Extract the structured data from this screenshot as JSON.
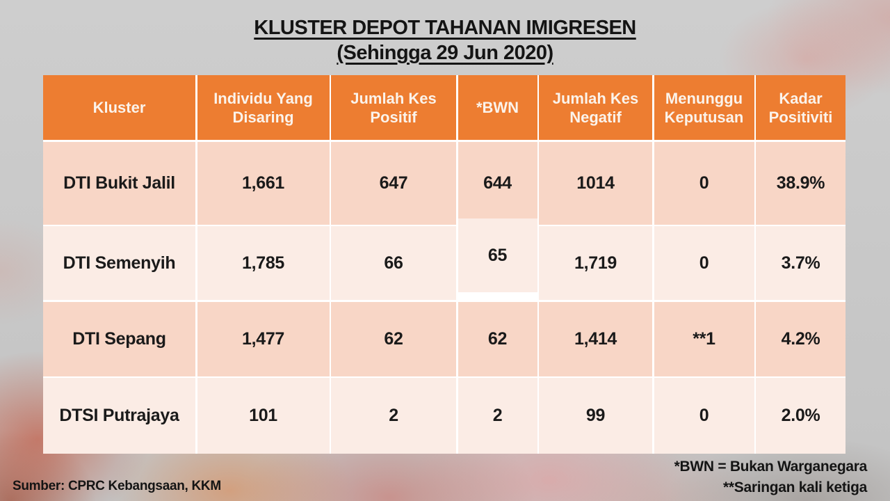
{
  "title": {
    "line1": "KLUSTER DEPOT TAHANAN IMIGRESEN",
    "line2": "(Sehingga 29 Jun 2020)"
  },
  "chart_data": {
    "type": "table",
    "title": "KLUSTER DEPOT TAHANAN IMIGRESEN (Sehingga 29 Jun 2020)",
    "columns": [
      "Kluster",
      "Individu Yang Disaring",
      "Jumlah Kes Positif",
      "*BWN",
      "Jumlah Kes Negatif",
      "Menunggu Keputusan",
      "Kadar Positiviti"
    ],
    "column_keys": [
      "kluster",
      "disaring",
      "positif",
      "bwn",
      "negatif",
      "menunggu",
      "kadar"
    ],
    "rows": [
      [
        "DTI Bukit Jalil",
        "1,661",
        "647",
        "644",
        "1014",
        "0",
        "38.9%"
      ],
      [
        "DTI Semenyih",
        "1,785",
        "66",
        "65",
        "1,719",
        "0",
        "3.7%"
      ],
      [
        "DTI Sepang",
        "1,477",
        "62",
        "62",
        "1,414",
        "**1",
        "4.2%"
      ],
      [
        "DTSI Putrajaya",
        "101",
        "2",
        "2",
        "99",
        "0",
        "2.0%"
      ]
    ],
    "notes": [
      "*BWN = Bukan Warganegara",
      "**Saringan kali ketiga"
    ],
    "source": "Sumber: CPRC Kebangsaan, KKM"
  },
  "footer": {
    "source": "Sumber: CPRC Kebangsaan, KKM",
    "note1": "*BWN = Bukan Warganegara",
    "note2": "**Saringan kali ketiga"
  },
  "colors": {
    "header_bg": "#ED7D31",
    "header_text": "#FBF3EB",
    "row_odd_bg": "#F8D6C6",
    "row_even_bg": "#FBECE5",
    "grid_line": "#FFFFFF",
    "text": "#1A1A1A",
    "background": "#C7C7C7"
  }
}
